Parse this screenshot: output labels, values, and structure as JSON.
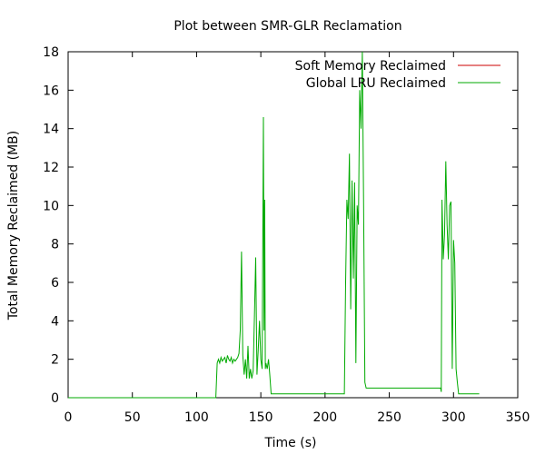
{
  "chart_data": {
    "type": "line",
    "title": "Plot between SMR-GLR Reclamation",
    "xlabel": "Time (s)",
    "ylabel": "Total Memory Reclaimed (MB)",
    "xlim": [
      0,
      350
    ],
    "ylim": [
      0,
      18
    ],
    "xticks": [
      0,
      50,
      100,
      150,
      200,
      250,
      300,
      350
    ],
    "yticks": [
      0,
      2,
      4,
      6,
      8,
      10,
      12,
      14,
      16,
      18
    ],
    "grid": false,
    "legend_position": "top-right",
    "series": [
      {
        "name": "Soft Memory Reclaimed",
        "color": "#cc0000",
        "points": []
      },
      {
        "name": "Global LRU Reclaimed",
        "color": "#00aa00",
        "points": [
          [
            0,
            0
          ],
          [
            115,
            0
          ],
          [
            116,
            1.8
          ],
          [
            117,
            2.0
          ],
          [
            118,
            1.8
          ],
          [
            119,
            2.1
          ],
          [
            120,
            1.9
          ],
          [
            121,
            2.0
          ],
          [
            122,
            2.1
          ],
          [
            123,
            1.8
          ],
          [
            124,
            2.2
          ],
          [
            125,
            2.0
          ],
          [
            126,
            1.9
          ],
          [
            127,
            2.1
          ],
          [
            128,
            1.8
          ],
          [
            129,
            2.0
          ],
          [
            130,
            1.9
          ],
          [
            131,
            2.0
          ],
          [
            132,
            2.1
          ],
          [
            133,
            2.3
          ],
          [
            134,
            3.5
          ],
          [
            135,
            7.6
          ],
          [
            136,
            2.2
          ],
          [
            137,
            1.2
          ],
          [
            138,
            2.0
          ],
          [
            139,
            1.0
          ],
          [
            140,
            2.7
          ],
          [
            141,
            1.0
          ],
          [
            142,
            1.5
          ],
          [
            143,
            1.0
          ],
          [
            144,
            1.4
          ],
          [
            145,
            4.2
          ],
          [
            146,
            7.3
          ],
          [
            147,
            1.2
          ],
          [
            148,
            2.5
          ],
          [
            149,
            4.0
          ],
          [
            150,
            2.0
          ],
          [
            151,
            1.5
          ],
          [
            152,
            14.6
          ],
          [
            152.5,
            3.5
          ],
          [
            153,
            10.3
          ],
          [
            153.5,
            1.5
          ],
          [
            154,
            1.8
          ],
          [
            155,
            1.5
          ],
          [
            156,
            2.0
          ],
          [
            157,
            1.2
          ],
          [
            158,
            0.2
          ],
          [
            170,
            0.2
          ],
          [
            200,
            0.2
          ],
          [
            215,
            0.2
          ],
          [
            216,
            6.0
          ],
          [
            217,
            10.3
          ],
          [
            218,
            9.3
          ],
          [
            219,
            12.7
          ],
          [
            220,
            4.6
          ],
          [
            221,
            11.3
          ],
          [
            222,
            6.2
          ],
          [
            223,
            11.2
          ],
          [
            224,
            1.8
          ],
          [
            225,
            10.0
          ],
          [
            226,
            9.0
          ],
          [
            227,
            16.0
          ],
          [
            227.5,
            15.0
          ],
          [
            228,
            14.0
          ],
          [
            229,
            18.0
          ],
          [
            230,
            10.0
          ],
          [
            231,
            0.8
          ],
          [
            232,
            0.5
          ],
          [
            250,
            0.5
          ],
          [
            270,
            0.5
          ],
          [
            290,
            0.5
          ],
          [
            290.5,
            0.3
          ],
          [
            291,
            10.3
          ],
          [
            292,
            7.2
          ],
          [
            293,
            8.5
          ],
          [
            294,
            12.3
          ],
          [
            295,
            9.0
          ],
          [
            296,
            7.2
          ],
          [
            297,
            10.0
          ],
          [
            298,
            10.2
          ],
          [
            299,
            1.5
          ],
          [
            300,
            8.2
          ],
          [
            301,
            7.0
          ],
          [
            302,
            1.5
          ],
          [
            303,
            0.8
          ],
          [
            304,
            0.2
          ],
          [
            310,
            0.2
          ],
          [
            320,
            0.2
          ]
        ]
      }
    ]
  }
}
